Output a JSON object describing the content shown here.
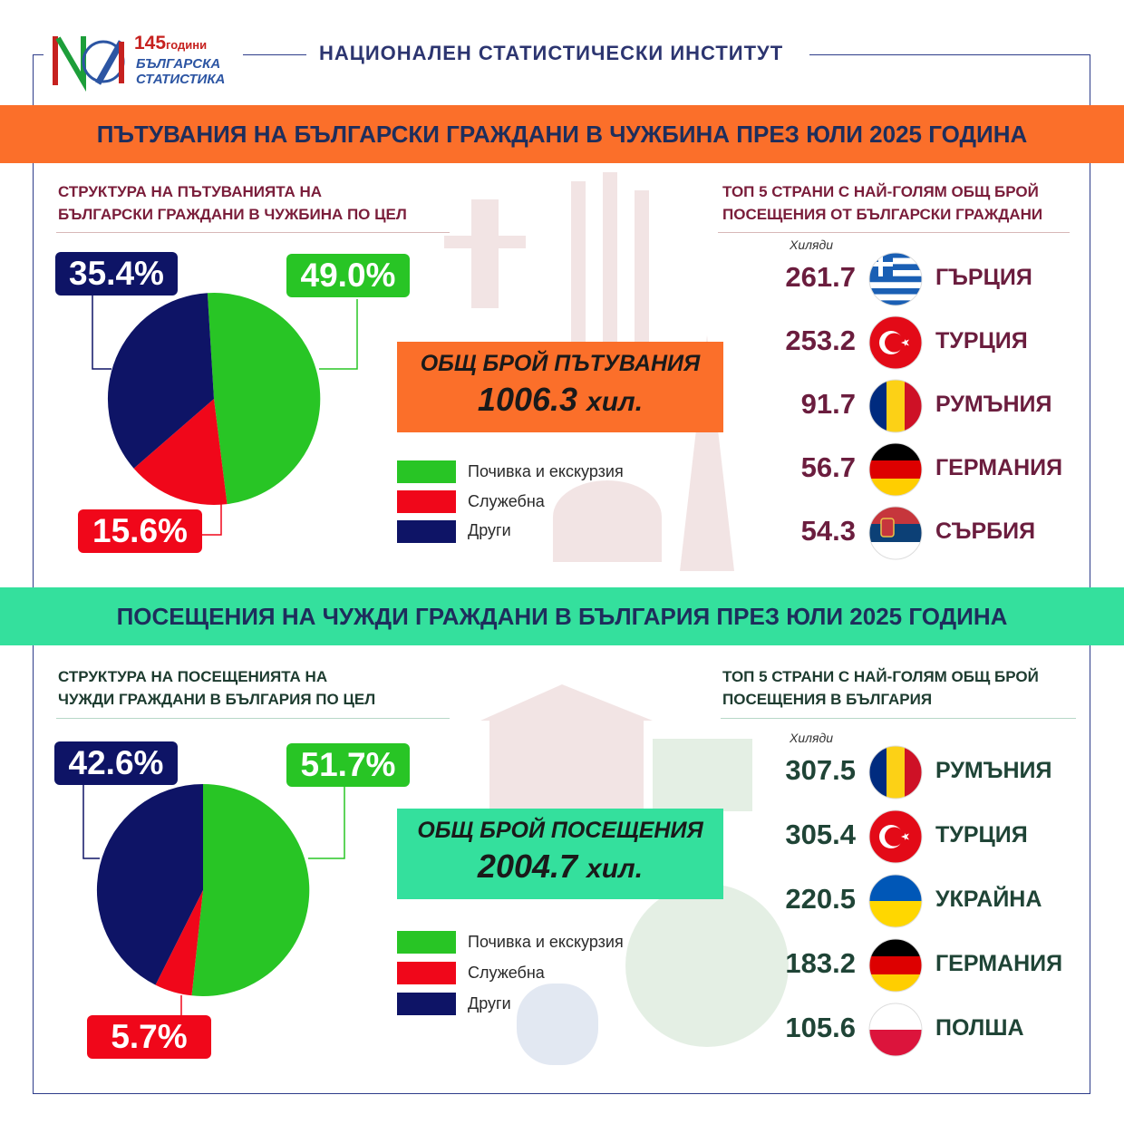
{
  "header": {
    "logo_years": "145",
    "logo_years_word": "години",
    "logo_line1": "БЪЛГАРСКА",
    "logo_line2": "СТАТИСТИКА",
    "institute": "НАЦИОНАЛЕН  СТАТИСТИЧЕСКИ  ИНСТИТУТ"
  },
  "section1": {
    "banner": "ПЪТУВАНИЯ НА БЪЛГАРСКИ ГРАЖДАНИ В ЧУЖБИНА ПРЕЗ ЮЛИ 2025 ГОДИНА",
    "pie_title_l1": "СТРУКТУРА НА ПЪТУВАНИЯТА НА",
    "pie_title_l2": "БЪЛГАРСКИ ГРАЖДАНИ В ЧУЖБИНА ПО ЦЕЛ",
    "top_title_l1": "ТОП 5 СТРАНИ С НАЙ-ГОЛЯМ ОБЩ БРОЙ",
    "top_title_l2": "ПОСЕЩЕНИЯ ОТ БЪЛГАРСКИ ГРАЖДАНИ",
    "unit": "Хиляди",
    "total_label": "ОБЩ БРОЙ ПЪТУВАНИЯ",
    "total_value": "1006.3",
    "total_unit": "хил.",
    "pct_green": "49.0%",
    "pct_navy": "35.4%",
    "pct_red": "15.6%",
    "legend": [
      "Почивка и екскурзия",
      "Служебна",
      "Други"
    ],
    "countries": [
      {
        "value": "261.7",
        "name": "ГЪРЦИЯ",
        "flag": "greece-flag-icon"
      },
      {
        "value": "253.2",
        "name": "ТУРЦИЯ",
        "flag": "turkey-flag-icon"
      },
      {
        "value": "91.7",
        "name": "РУМЪНИЯ",
        "flag": "romania-flag-icon"
      },
      {
        "value": "56.7",
        "name": "ГЕРМАНИЯ",
        "flag": "germany-flag-icon"
      },
      {
        "value": "54.3",
        "name": "СЪРБИЯ",
        "flag": "serbia-flag-icon"
      }
    ]
  },
  "section2": {
    "banner": "ПОСЕЩЕНИЯ НА ЧУЖДИ ГРАЖДАНИ В БЪЛГАРИЯ ПРЕЗ ЮЛИ 2025 ГОДИНА",
    "pie_title_l1": "СТРУКТУРА НА ПОСЕЩЕНИЯТА НА",
    "pie_title_l2": "ЧУЖДИ ГРАЖДАНИ В БЪЛГАРИЯ ПО ЦЕЛ",
    "top_title_l1": "ТОП 5 СТРАНИ С НАЙ-ГОЛЯМ ОБЩ БРОЙ",
    "top_title_l2": "ПОСЕЩЕНИЯ В БЪЛГАРИЯ",
    "unit": "Хиляди",
    "total_label": "ОБЩ БРОЙ ПОСЕЩЕНИЯ",
    "total_value": "2004.7",
    "total_unit": "хил.",
    "pct_green": "51.7%",
    "pct_navy": "42.6%",
    "pct_red": "5.7%",
    "legend": [
      "Почивка и екскурзия",
      "Служебна",
      "Други"
    ],
    "countries": [
      {
        "value": "307.5",
        "name": "РУМЪНИЯ",
        "flag": "romania-flag-icon"
      },
      {
        "value": "305.4",
        "name": "ТУРЦИЯ",
        "flag": "turkey-flag-icon"
      },
      {
        "value": "220.5",
        "name": "УКРАЙНА",
        "flag": "ukraine-flag-icon"
      },
      {
        "value": "183.2",
        "name": "ГЕРМАНИЯ",
        "flag": "germany-flag-icon"
      },
      {
        "value": "105.6",
        "name": "ПОЛША",
        "flag": "poland-flag-icon"
      }
    ]
  },
  "colors": {
    "green": "#28c525",
    "navy": "#0e1466",
    "red": "#f0071a",
    "orange": "#fb6f2a",
    "mint": "#34e09d"
  },
  "chart_data": [
    {
      "type": "pie",
      "title": "СТРУКТУРА НА ПЪТУВАНИЯТА НА БЪЛГАРСКИ ГРАЖДАНИ В ЧУЖБИНА ПО ЦЕЛ",
      "categories": [
        "Почивка и екскурзия",
        "Служебна",
        "Други"
      ],
      "values": [
        49.0,
        15.6,
        35.4
      ],
      "colors": [
        "#28c525",
        "#f0071a",
        "#0e1466"
      ]
    },
    {
      "type": "bar",
      "title": "ТОП 5 СТРАНИ С НАЙ-ГОЛЯМ ОБЩ БРОЙ ПОСЕЩЕНИЯ ОТ БЪЛГАРСКИ ГРАЖДАНИ",
      "categories": [
        "ГЪРЦИЯ",
        "ТУРЦИЯ",
        "РУМЪНИЯ",
        "ГЕРМАНИЯ",
        "СЪРБИЯ"
      ],
      "values": [
        261.7,
        253.2,
        91.7,
        56.7,
        54.3
      ],
      "ylabel": "Хиляди"
    },
    {
      "type": "pie",
      "title": "СТРУКТУРА НА ПОСЕЩЕНИЯТА НА ЧУЖДИ ГРАЖДАНИ В БЪЛГАРИЯ ПО ЦЕЛ",
      "categories": [
        "Почивка и екскурзия",
        "Служебна",
        "Други"
      ],
      "values": [
        51.7,
        5.7,
        42.6
      ],
      "colors": [
        "#28c525",
        "#f0071a",
        "#0e1466"
      ]
    },
    {
      "type": "bar",
      "title": "ТОП 5 СТРАНИ С НАЙ-ГОЛЯМ ОБЩ БРОЙ ПОСЕЩЕНИЯ В БЪЛГАРИЯ",
      "categories": [
        "РУМЪНИЯ",
        "ТУРЦИЯ",
        "УКРАЙНА",
        "ГЕРМАНИЯ",
        "ПОЛША"
      ],
      "values": [
        307.5,
        305.4,
        220.5,
        183.2,
        105.6
      ],
      "ylabel": "Хиляди"
    }
  ]
}
